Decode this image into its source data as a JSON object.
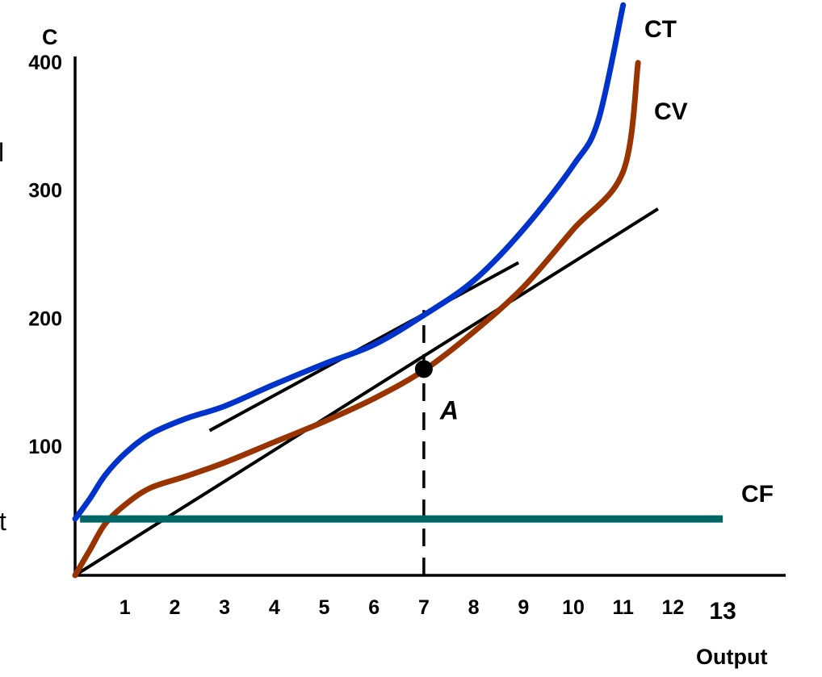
{
  "chart_data": {
    "type": "line",
    "ylabel": "C",
    "xlabel": "Output",
    "xlim": [
      0,
      13.6
    ],
    "ylim": [
      0,
      400
    ],
    "x_ticks": [
      "1",
      "2",
      "3",
      "4",
      "5",
      "6",
      "7",
      "8",
      "9",
      "10",
      "11",
      "12",
      "13"
    ],
    "y_ticks": [
      "100",
      "200",
      "300",
      "400"
    ],
    "left_fragments": [
      "l",
      "/",
      "t"
    ],
    "series": [
      {
        "name": "CT",
        "color": "#0033cc",
        "x": [
          0,
          0.3,
          0.6,
          1.0,
          1.5,
          2.2,
          3.0,
          4.0,
          5.0,
          6.0,
          7.0,
          8.0,
          9.0,
          10.0,
          10.5,
          11.0
        ],
        "y": [
          44,
          60,
          78,
          95,
          110,
          122,
          132,
          149,
          165,
          180,
          203,
          230,
          270,
          320,
          355,
          445
        ]
      },
      {
        "name": "CV",
        "color": "#993300",
        "x": [
          0,
          0.3,
          0.6,
          1.0,
          1.5,
          2.2,
          3.0,
          4.0,
          5.0,
          6.0,
          7.0,
          8.0,
          9.0,
          10.0,
          11.0,
          11.3
        ],
        "y": [
          0,
          20,
          40,
          55,
          68,
          77,
          88,
          104,
          120,
          138,
          160,
          190,
          225,
          270,
          315,
          400
        ]
      },
      {
        "name": "CF",
        "color": "#006666",
        "x": [
          0.1,
          13.0
        ],
        "y": [
          44,
          44
        ]
      }
    ],
    "reference_lines": [
      {
        "kind": "ray through origin",
        "color": "#000000",
        "x": [
          0,
          11.7
        ],
        "y": [
          0,
          286
        ]
      },
      {
        "kind": "tangent to CT",
        "color": "#000000",
        "x": [
          2.7,
          8.9
        ],
        "y": [
          113,
          244
        ]
      },
      {
        "kind": "vertical dashed",
        "color": "#000000",
        "x": [
          7,
          7
        ],
        "y": [
          0,
          207
        ]
      }
    ],
    "point": {
      "label": "A",
      "x": 7,
      "y": 161
    },
    "grid": false,
    "legend": "none"
  }
}
